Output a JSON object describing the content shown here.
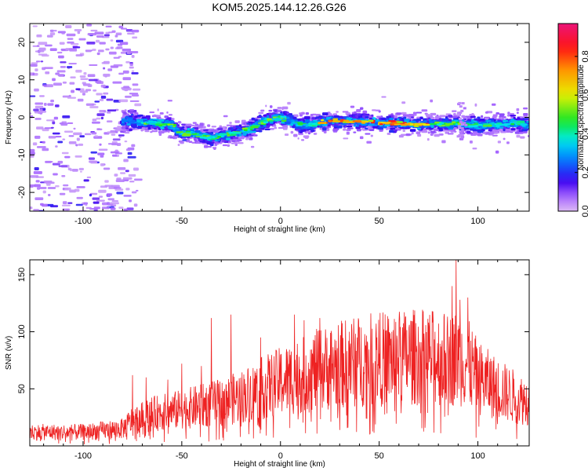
{
  "title": "KOM5.2025.144.12.26.G26",
  "chart_data": [
    {
      "type": "heatmap",
      "xlabel": "Height of straight line (km)",
      "ylabel": "Frequency (Hz)",
      "xlim": [
        -127,
        126
      ],
      "ylim": [
        -25,
        25
      ],
      "xticks": [
        -100,
        -50,
        0,
        50,
        100
      ],
      "xtick_labels": [
        "-100",
        "-50",
        "0",
        "50",
        "100"
      ],
      "yticks": [
        -20,
        -10,
        0,
        10,
        20
      ],
      "ytick_labels": [
        "-20",
        "-10",
        "0",
        "10",
        "20"
      ],
      "ridge": {
        "x": [
          -80,
          -75,
          -70,
          -65,
          -60,
          -55,
          -50,
          -45,
          -40,
          -35,
          -30,
          -25,
          -20,
          -15,
          -10,
          -5,
          0,
          5,
          10,
          15,
          20,
          25,
          30,
          40,
          50,
          60,
          70,
          80,
          85,
          90,
          95,
          100,
          110,
          120,
          125
        ],
        "y": [
          -1,
          -1,
          -1.5,
          -1.5,
          -2,
          -2,
          -4.5,
          -4,
          -5,
          -5.5,
          -5,
          -4.5,
          -4,
          -3,
          -1.5,
          -0.5,
          0,
          -1,
          -2,
          -2,
          -1.5,
          -1,
          -1,
          -1,
          -1.5,
          -1.5,
          -2,
          -1.5,
          -2,
          -1.5,
          -2,
          -2,
          -2,
          -1.5,
          -2
        ]
      },
      "colorbar": {
        "label": "Normalized spectral amplitude",
        "ticks": [
          0.0,
          0.2,
          0.4,
          0.6,
          0.8
        ],
        "tick_labels": [
          "0.0",
          "0.2",
          "0.4",
          "0.6",
          "0.8"
        ],
        "range": [
          0,
          0.97
        ]
      }
    },
    {
      "type": "line",
      "xlabel": "Height of straight line (km)",
      "ylabel": "SNR (v/v)",
      "xlim": [
        -127,
        126
      ],
      "ylim": [
        0,
        163
      ],
      "xticks": [
        -100,
        -50,
        0,
        50,
        100
      ],
      "xtick_labels": [
        "-100",
        "-50",
        "0",
        "50",
        "100"
      ],
      "yticks": [
        50,
        100,
        150
      ],
      "ytick_labels": [
        "50",
        "100",
        "150"
      ],
      "color": "#ee2222",
      "envelope": {
        "x": [
          -127,
          -100,
          -80,
          -75,
          -65,
          -50,
          -40,
          -30,
          -20,
          -10,
          0,
          10,
          20,
          30,
          40,
          50,
          60,
          70,
          80,
          85,
          90,
          95,
          100,
          110,
          120,
          126
        ],
        "y": [
          12,
          12,
          15,
          22,
          28,
          32,
          35,
          38,
          43,
          50,
          56,
          62,
          67,
          71,
          74,
          76,
          77,
          78,
          77,
          75,
          78,
          72,
          60,
          50,
          42,
          38
        ]
      },
      "spikes": [
        {
          "x": -75,
          "y": 62
        },
        {
          "x": -68,
          "y": 60
        },
        {
          "x": -57,
          "y": 58
        },
        {
          "x": -50,
          "y": 72
        },
        {
          "x": -40,
          "y": 70
        },
        {
          "x": -35,
          "y": 112
        },
        {
          "x": -25,
          "y": 115
        },
        {
          "x": -10,
          "y": 95
        },
        {
          "x": 7,
          "y": 115
        },
        {
          "x": 12,
          "y": 110
        },
        {
          "x": 20,
          "y": 112
        },
        {
          "x": 35,
          "y": 100
        },
        {
          "x": 60,
          "y": 108
        },
        {
          "x": 75,
          "y": 108
        },
        {
          "x": 87,
          "y": 140
        },
        {
          "x": 89,
          "y": 163
        },
        {
          "x": 91,
          "y": 128
        },
        {
          "x": 95,
          "y": 130
        }
      ]
    }
  ]
}
